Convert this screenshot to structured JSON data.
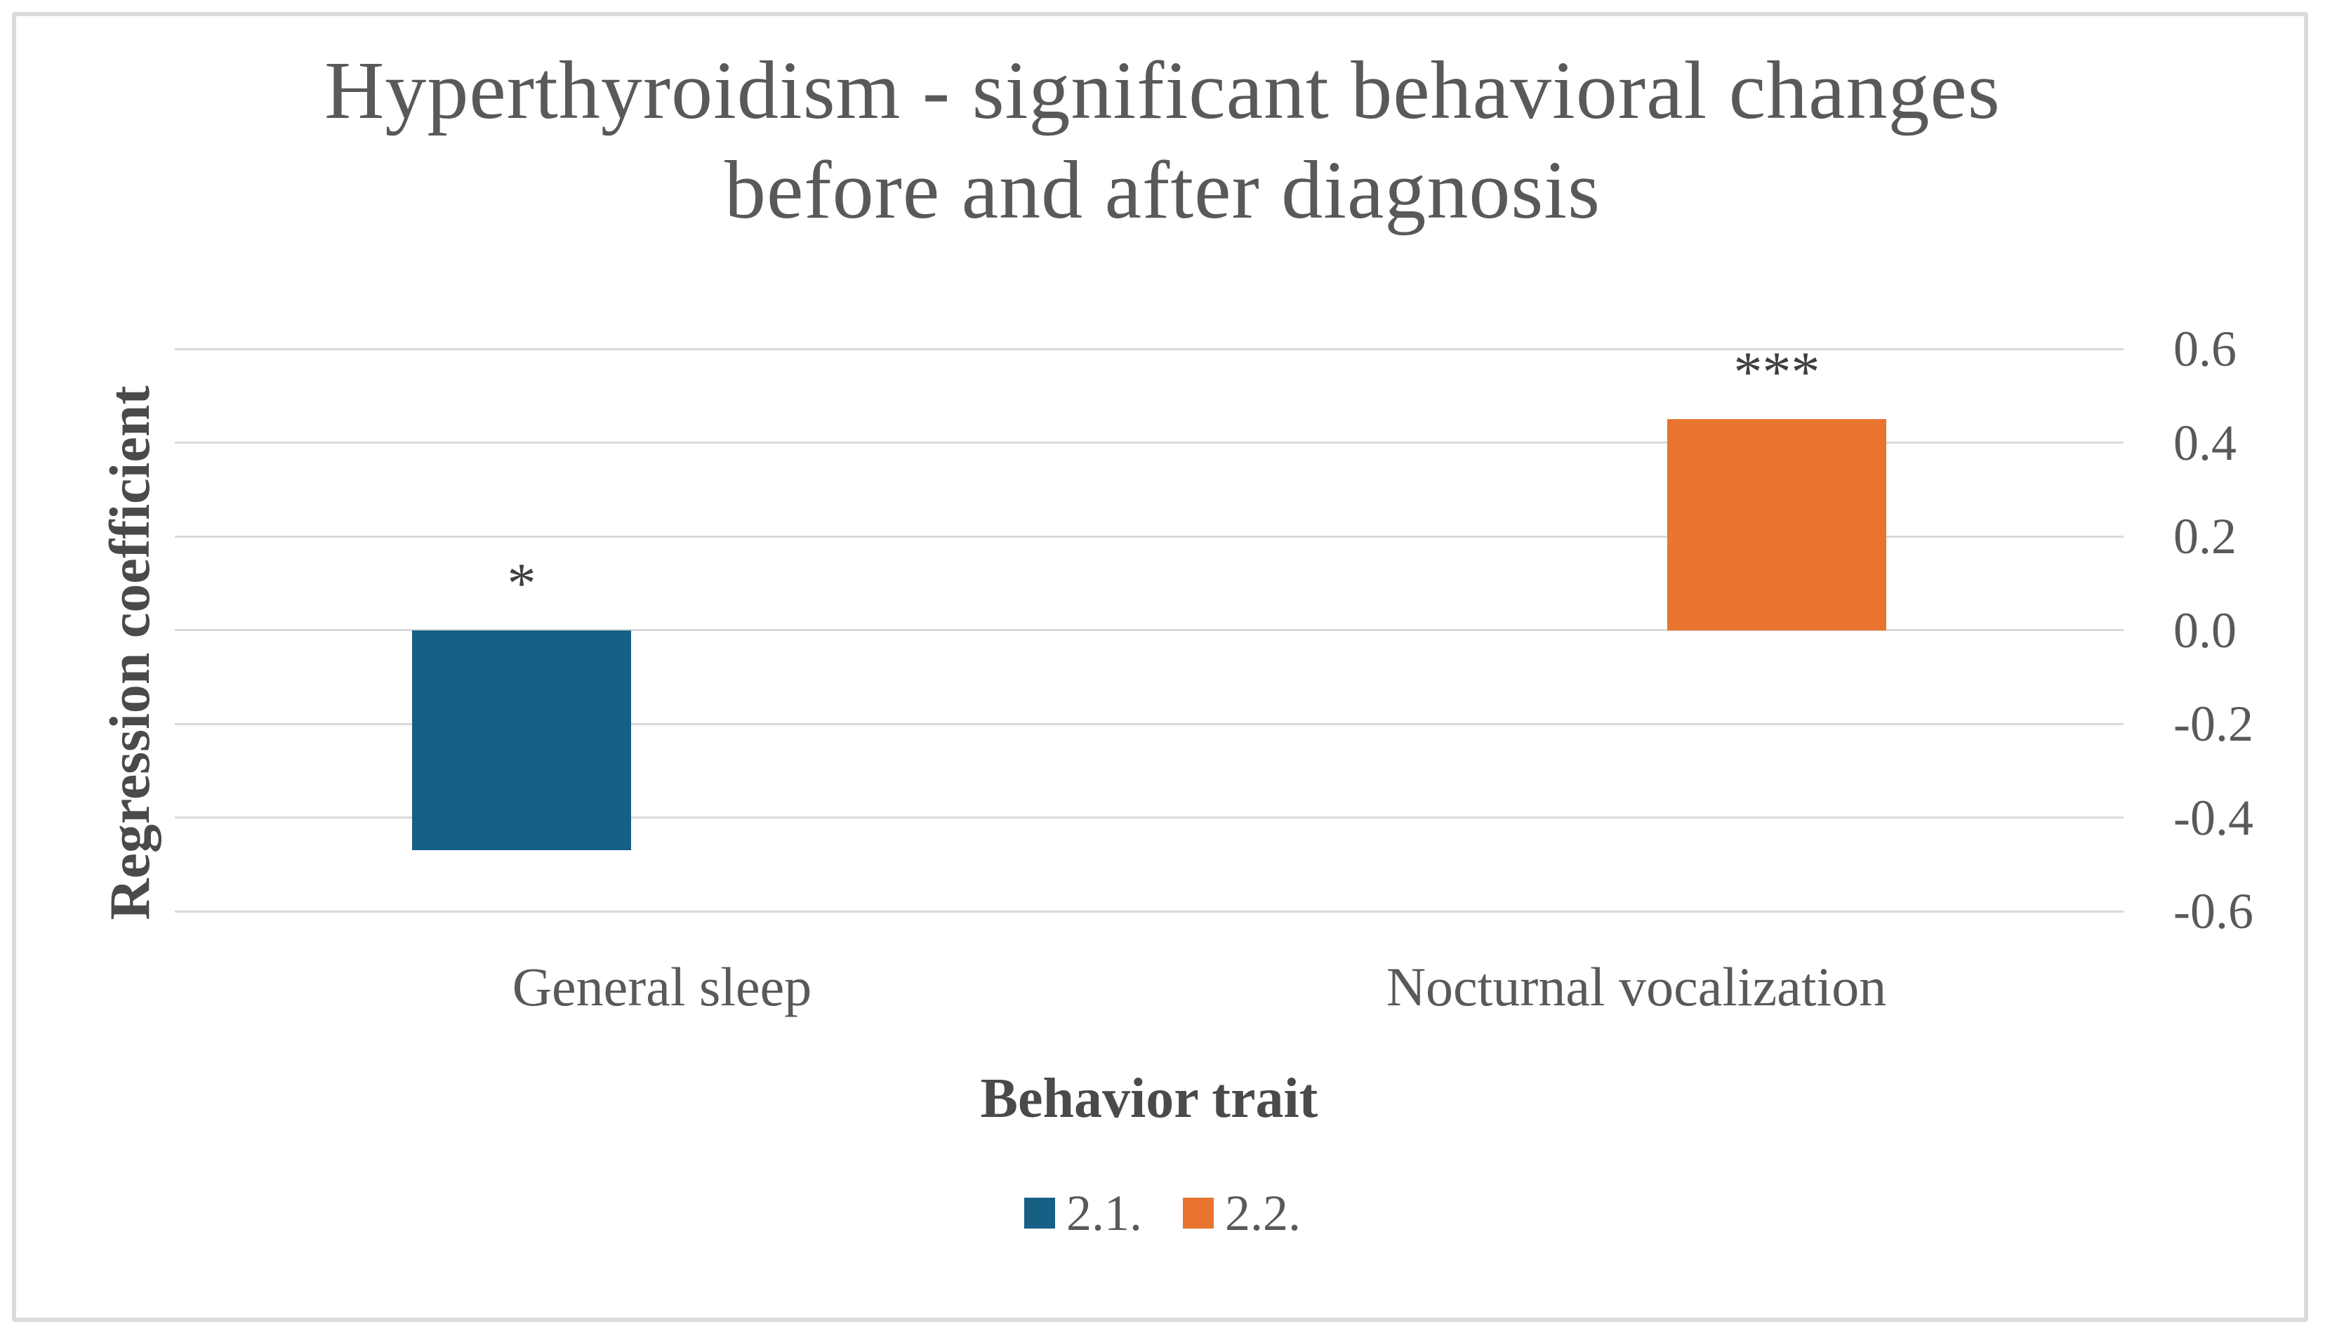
{
  "figure": {
    "background": "#FFFFFF",
    "border_color": "#DADADA"
  },
  "chart_data": {
    "type": "bar",
    "title": "Hyperthyroidism - significant behavioral changes before and after diagnosis",
    "title_lines": [
      "Hyperthyroidism - significant behavioral changes",
      "before and after diagnosis"
    ],
    "xlabel": "Behavior trait",
    "ylabel": "Regression coefficient",
    "categories": [
      "General sleep",
      "Nocturnal vocalization"
    ],
    "series": [
      {
        "name": "2.1.",
        "color": "#166085",
        "values": [
          -0.47,
          null
        ],
        "annotations": [
          "*",
          null
        ]
      },
      {
        "name": "2.2.",
        "color": "#E87430",
        "values": [
          null,
          0.45
        ],
        "annotations": [
          null,
          "***"
        ]
      }
    ],
    "yticks": [
      "0.6",
      "0.4",
      "0.2",
      "0.0",
      "-0.2",
      "-0.4",
      "-0.6"
    ],
    "ylim": [
      -0.6,
      0.6
    ],
    "grid": true,
    "gridline_color": "#D9D9D9",
    "legend_position": "bottom",
    "text_color": "#595959",
    "axis_title_color": "#4A4A4A",
    "annotation_color": "#3F3F3F"
  }
}
